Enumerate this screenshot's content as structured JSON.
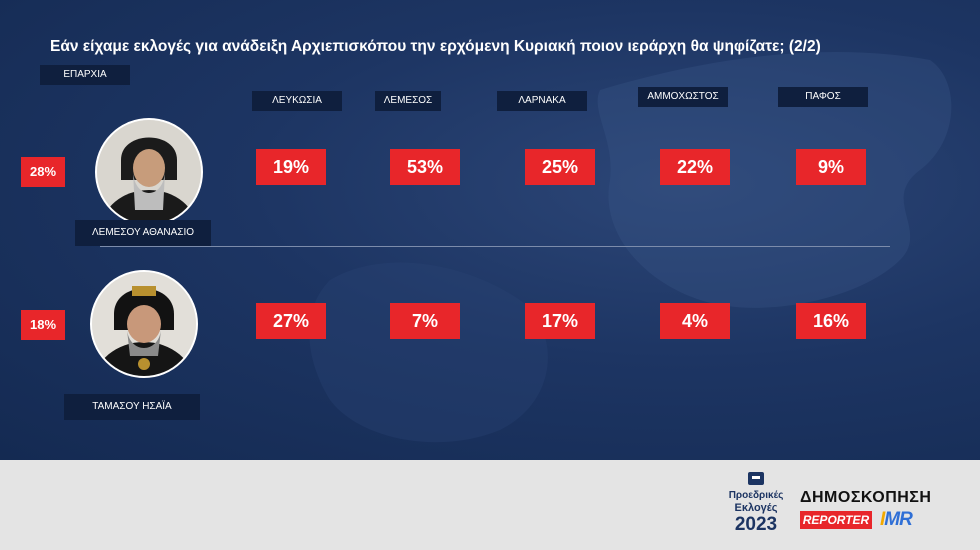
{
  "title": "Εάν είχαμε εκλογές για ανάδειξη Αρχιεπισκόπου την ερχόμενη Κυριακή ποιον ιεράρχη θα ψηφίζατε; (2/2)",
  "eparchia_label": "ΕΠΑΡΧΙΑ",
  "chart_data": {
    "type": "table",
    "title": "Εάν είχαμε εκλογές για ανάδειξη Αρχιεπισκόπου την ερχόμενη Κυριακή ποιον ιεράρχη θα ψηφίζατε; (2/2)",
    "columns": [
      "ΛΕΥΚΩΣΙΑ",
      "ΛΕΜΕΣΟΣ",
      "ΛΑΡΝΑΚΑ",
      "ΑΜΜΟΧΩΣΤΟΣ",
      "ΠΑΦΟΣ"
    ],
    "rows": [
      {
        "name": "ΛΕΜΕΣΟΥ ΑΘΑΝΑΣΙΟ",
        "total": "28%",
        "values": [
          "19%",
          "53%",
          "25%",
          "22%",
          "9%"
        ]
      },
      {
        "name": "ΤΑΜΑΣΟΥ ΗΣΑΪΑ",
        "total": "18%",
        "values": [
          "27%",
          "7%",
          "17%",
          "4%",
          "16%"
        ]
      }
    ]
  },
  "footer": {
    "badge_line1": "Προεδρικές",
    "badge_line2": "Εκλογές",
    "badge_year": "2023",
    "poll_label": "ΔΗΜΟΣΚΟΠΗΣΗ",
    "reporter": "REPORTER",
    "imr_i": "I",
    "imr_rest": "MR"
  },
  "colors": {
    "panel": "#1d3563",
    "accent_red": "#e8262a",
    "tag_dark": "#0f1f3e",
    "footer": "#e4e4e4"
  },
  "icons": [
    "bishop-portrait-icon",
    "ballot-box-icon"
  ]
}
